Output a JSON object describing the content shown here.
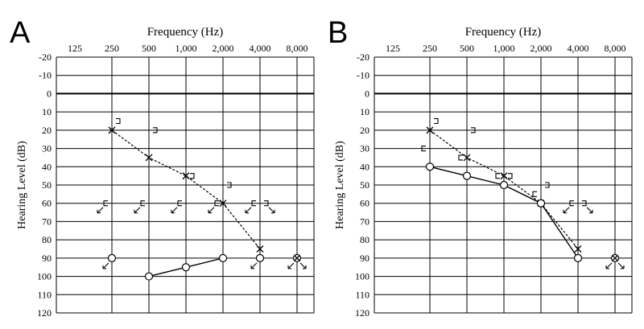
{
  "chart_data": [
    {
      "type": "line",
      "panel_label": "A",
      "title": "Frequency (Hz)",
      "ylabel": "Hearing Level (dB)",
      "xlabel": "",
      "x_tick_labels": [
        "125",
        "250",
        "500",
        "1,000",
        "2,000",
        "4,000",
        "8,000"
      ],
      "x": [
        125,
        250,
        500,
        1000,
        2000,
        4000,
        8000
      ],
      "y_tick_labels": [
        "-20",
        "-10",
        "0",
        "10",
        "20",
        "30",
        "40",
        "50",
        "60",
        "70",
        "80",
        "90",
        "100",
        "110",
        "120"
      ],
      "ylim": [
        -20,
        120
      ],
      "y_inverted": true,
      "grid": true,
      "series": [
        {
          "symbol": "x",
          "line": "dashed",
          "x": [
            250,
            500,
            1000,
            2000,
            4000
          ],
          "values": [
            20,
            35,
            45,
            60,
            85
          ]
        },
        {
          "symbol": "o",
          "line": "solid",
          "x": [
            500,
            1000,
            2000
          ],
          "values": [
            100,
            95,
            90
          ]
        },
        {
          "symbol": "o",
          "line": "none",
          "arrow": true,
          "x": [
            250,
            4000
          ],
          "values": [
            90,
            90
          ]
        },
        {
          "symbol": "o-x",
          "line": "none",
          "arrow": true,
          "x": [
            8000
          ],
          "values": [
            90
          ]
        },
        {
          "symbol": "bracket-right",
          "line": "none",
          "x": [
            250,
            500,
            1000,
            2000
          ],
          "values": [
            15,
            20,
            45,
            50
          ]
        },
        {
          "symbol": "bracket-left",
          "line": "none",
          "arrow": true,
          "x": [
            250,
            500,
            1000,
            2000,
            4000
          ],
          "values": [
            60,
            60,
            60,
            60,
            60
          ]
        },
        {
          "symbol": "bracket-right",
          "line": "none",
          "arrow": true,
          "x": [
            4000
          ],
          "values": [
            60
          ]
        }
      ]
    },
    {
      "type": "line",
      "panel_label": "B",
      "title": "Frequency (Hz)",
      "ylabel": "Hearing Level (dB)",
      "xlabel": "",
      "x_tick_labels": [
        "125",
        "250",
        "500",
        "1,000",
        "2,000",
        "4,000",
        "8,000"
      ],
      "x": [
        125,
        250,
        500,
        1000,
        2000,
        4000,
        8000
      ],
      "y_tick_labels": [
        "-20",
        "-10",
        "0",
        "10",
        "20",
        "30",
        "40",
        "50",
        "60",
        "70",
        "80",
        "90",
        "100",
        "110",
        "120"
      ],
      "ylim": [
        -20,
        120
      ],
      "y_inverted": true,
      "grid": true,
      "series": [
        {
          "symbol": "x",
          "line": "dashed",
          "x": [
            250,
            500,
            1000,
            2000,
            4000
          ],
          "values": [
            20,
            35,
            45,
            60,
            85
          ]
        },
        {
          "symbol": "o",
          "line": "solid",
          "x": [
            250,
            500,
            1000,
            2000,
            4000
          ],
          "values": [
            40,
            45,
            50,
            60,
            90
          ]
        },
        {
          "symbol": "o-x",
          "line": "none",
          "arrow": true,
          "x": [
            8000
          ],
          "values": [
            90
          ]
        },
        {
          "symbol": "bracket-right",
          "line": "none",
          "x": [
            250,
            500,
            1000,
            2000
          ],
          "values": [
            15,
            20,
            45,
            50
          ]
        },
        {
          "symbol": "bracket-left",
          "line": "none",
          "x": [
            250,
            500,
            1000,
            2000
          ],
          "values": [
            30,
            35,
            45,
            55
          ]
        },
        {
          "symbol": "bracket-left",
          "line": "none",
          "arrow": true,
          "x": [
            4000
          ],
          "values": [
            60
          ]
        },
        {
          "symbol": "bracket-right",
          "line": "none",
          "arrow": true,
          "x": [
            4000
          ],
          "values": [
            60
          ]
        }
      ]
    }
  ]
}
